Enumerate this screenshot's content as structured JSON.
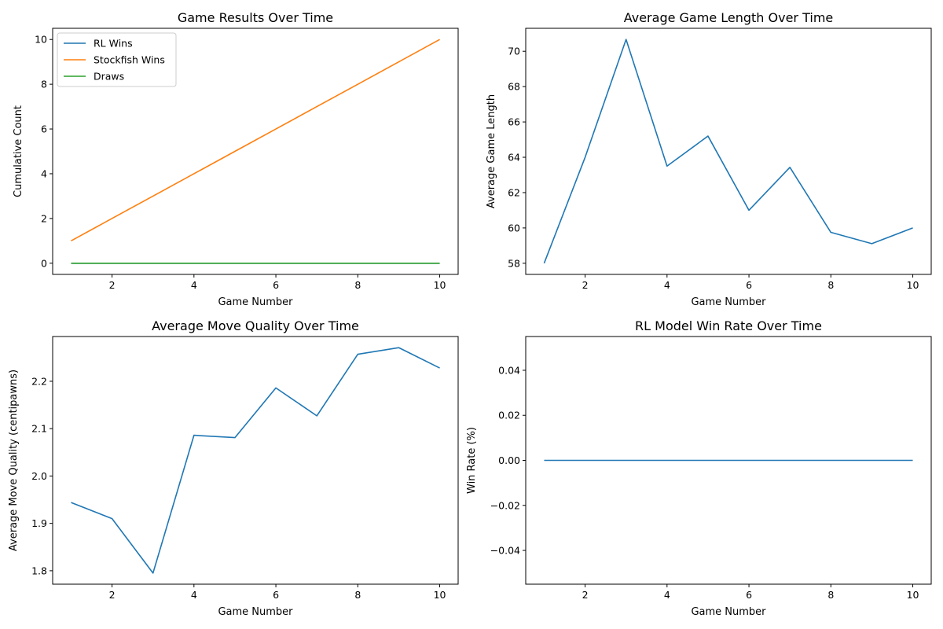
{
  "chart_data": [
    {
      "type": "line",
      "title": "Game Results Over Time",
      "xlabel": "Game Number",
      "ylabel": "Cumulative Count",
      "x": [
        1,
        2,
        3,
        4,
        5,
        6,
        7,
        8,
        9,
        10
      ],
      "xlim": [
        0.55,
        10.45
      ],
      "ylim": [
        -0.5,
        10.5
      ],
      "xticks": [
        2,
        4,
        6,
        8,
        10
      ],
      "yticks": [
        0,
        2,
        4,
        6,
        8,
        10
      ],
      "grid": false,
      "legend": "upper left",
      "series": [
        {
          "name": "RL Wins",
          "color": "#1f77b4",
          "values": [
            0,
            0,
            0,
            0,
            0,
            0,
            0,
            0,
            0,
            0
          ]
        },
        {
          "name": "Stockfish Wins",
          "color": "#ff7f0e",
          "values": [
            1,
            2,
            3,
            4,
            5,
            6,
            7,
            8,
            9,
            10
          ]
        },
        {
          "name": "Draws",
          "color": "#2ca02c",
          "values": [
            0,
            0,
            0,
            0,
            0,
            0,
            0,
            0,
            0,
            0
          ]
        }
      ]
    },
    {
      "type": "line",
      "title": "Average Game Length Over Time",
      "xlabel": "Game Number",
      "ylabel": "Average Game Length",
      "x": [
        1,
        2,
        3,
        4,
        5,
        6,
        7,
        8,
        9,
        10
      ],
      "xlim": [
        0.55,
        10.45
      ],
      "ylim": [
        57.37,
        71.3
      ],
      "xticks": [
        2,
        4,
        6,
        8,
        10
      ],
      "yticks": [
        58,
        60,
        62,
        64,
        66,
        68,
        70
      ],
      "grid": false,
      "legend": "none",
      "series": [
        {
          "color": "#1f77b4",
          "values": [
            58.0,
            64.0,
            70.67,
            63.5,
            65.2,
            61.0,
            63.43,
            59.75,
            59.11,
            60.0
          ]
        }
      ]
    },
    {
      "type": "line",
      "title": "Average Move Quality Over Time",
      "xlabel": "Game Number",
      "ylabel": "Average Move Quality (centipawns)",
      "x": [
        1,
        2,
        3,
        4,
        5,
        6,
        7,
        8,
        9,
        10
      ],
      "xlim": [
        0.55,
        10.45
      ],
      "ylim": [
        1.7716,
        2.2945
      ],
      "xticks": [
        2,
        4,
        6,
        8,
        10
      ],
      "yticks": [
        1.8,
        1.9,
        2.0,
        2.1,
        2.2
      ],
      "ytick_labels": [
        "1.8",
        "1.9",
        "2.0",
        "2.1",
        "2.2"
      ],
      "grid": false,
      "legend": "none",
      "series": [
        {
          "color": "#1f77b4",
          "values": [
            1.944,
            1.91,
            1.795,
            2.086,
            2.081,
            2.186,
            2.127,
            2.257,
            2.271,
            2.228
          ]
        }
      ]
    },
    {
      "type": "line",
      "title": "RL Model Win Rate Over Time",
      "xlabel": "Game Number",
      "ylabel": "Win Rate (%)",
      "x": [
        1,
        2,
        3,
        4,
        5,
        6,
        7,
        8,
        9,
        10
      ],
      "xlim": [
        0.55,
        10.45
      ],
      "ylim": [
        -0.055,
        0.055
      ],
      "xticks": [
        2,
        4,
        6,
        8,
        10
      ],
      "yticks": [
        -0.04,
        -0.02,
        0.0,
        0.02,
        0.04
      ],
      "ytick_labels": [
        "−0.04",
        "−0.02",
        "0.00",
        "0.02",
        "0.04"
      ],
      "grid": false,
      "legend": "none",
      "series": [
        {
          "color": "#1f77b4",
          "values": [
            0,
            0,
            0,
            0,
            0,
            0,
            0,
            0,
            0,
            0
          ]
        }
      ]
    }
  ]
}
